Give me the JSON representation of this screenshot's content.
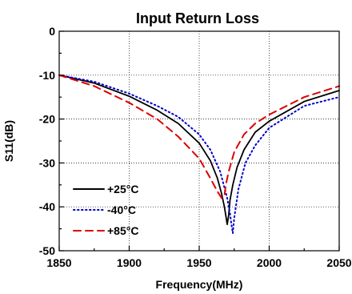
{
  "chart_data": {
    "type": "line",
    "title": "Input Return Loss",
    "xlabel": "Frequency(MHz)",
    "ylabel": "S11(dB)",
    "xlim": [
      1850,
      2050
    ],
    "ylim": [
      -50,
      0
    ],
    "x_ticks": [
      1850,
      1900,
      1950,
      2000,
      2050
    ],
    "y_ticks": [
      0,
      -10,
      -20,
      -30,
      -40,
      -50
    ],
    "grid": true,
    "legend_position": "bottom-left",
    "series": [
      {
        "name": "+25°C",
        "color": "#000000",
        "line_style": "solid",
        "x": [
          1850,
          1875,
          1900,
          1920,
          1935,
          1950,
          1958,
          1963,
          1966,
          1968,
          1969,
          1970,
          1971,
          1972,
          1974,
          1977,
          1982,
          1990,
          2000,
          2025,
          2050
        ],
        "y": [
          -10,
          -11.8,
          -14.8,
          -18,
          -21,
          -25.5,
          -29.5,
          -33.5,
          -37,
          -40,
          -42,
          -44,
          -42,
          -38.5,
          -35,
          -31,
          -27,
          -23,
          -20.5,
          -16,
          -13.5
        ]
      },
      {
        "name": "-40°C",
        "color": "#0000cc",
        "line_style": "dotted",
        "x": [
          1850,
          1875,
          1900,
          1920,
          1935,
          1950,
          1958,
          1965,
          1970,
          1972,
          1973,
          1974,
          1975,
          1978,
          1983,
          1990,
          2000,
          2025,
          2050
        ],
        "y": [
          -10,
          -11.5,
          -14.2,
          -17,
          -19.5,
          -23.5,
          -27,
          -32,
          -38,
          -41.5,
          -44,
          -46,
          -42.5,
          -36,
          -30,
          -26,
          -22,
          -17,
          -15
        ]
      },
      {
        "name": "+85°C",
        "color": "#dd0000",
        "line_style": "dashed",
        "x": [
          1850,
          1875,
          1900,
          1920,
          1935,
          1950,
          1958,
          1963,
          1966,
          1968,
          1969,
          1971,
          1975,
          1982,
          1990,
          2000,
          2025,
          2050
        ],
        "y": [
          -10,
          -12.5,
          -16.3,
          -20,
          -24,
          -29,
          -33.5,
          -36.5,
          -38,
          -37.5,
          -35,
          -32,
          -27.5,
          -23.5,
          -21,
          -19,
          -15,
          -12.5
        ]
      }
    ]
  }
}
